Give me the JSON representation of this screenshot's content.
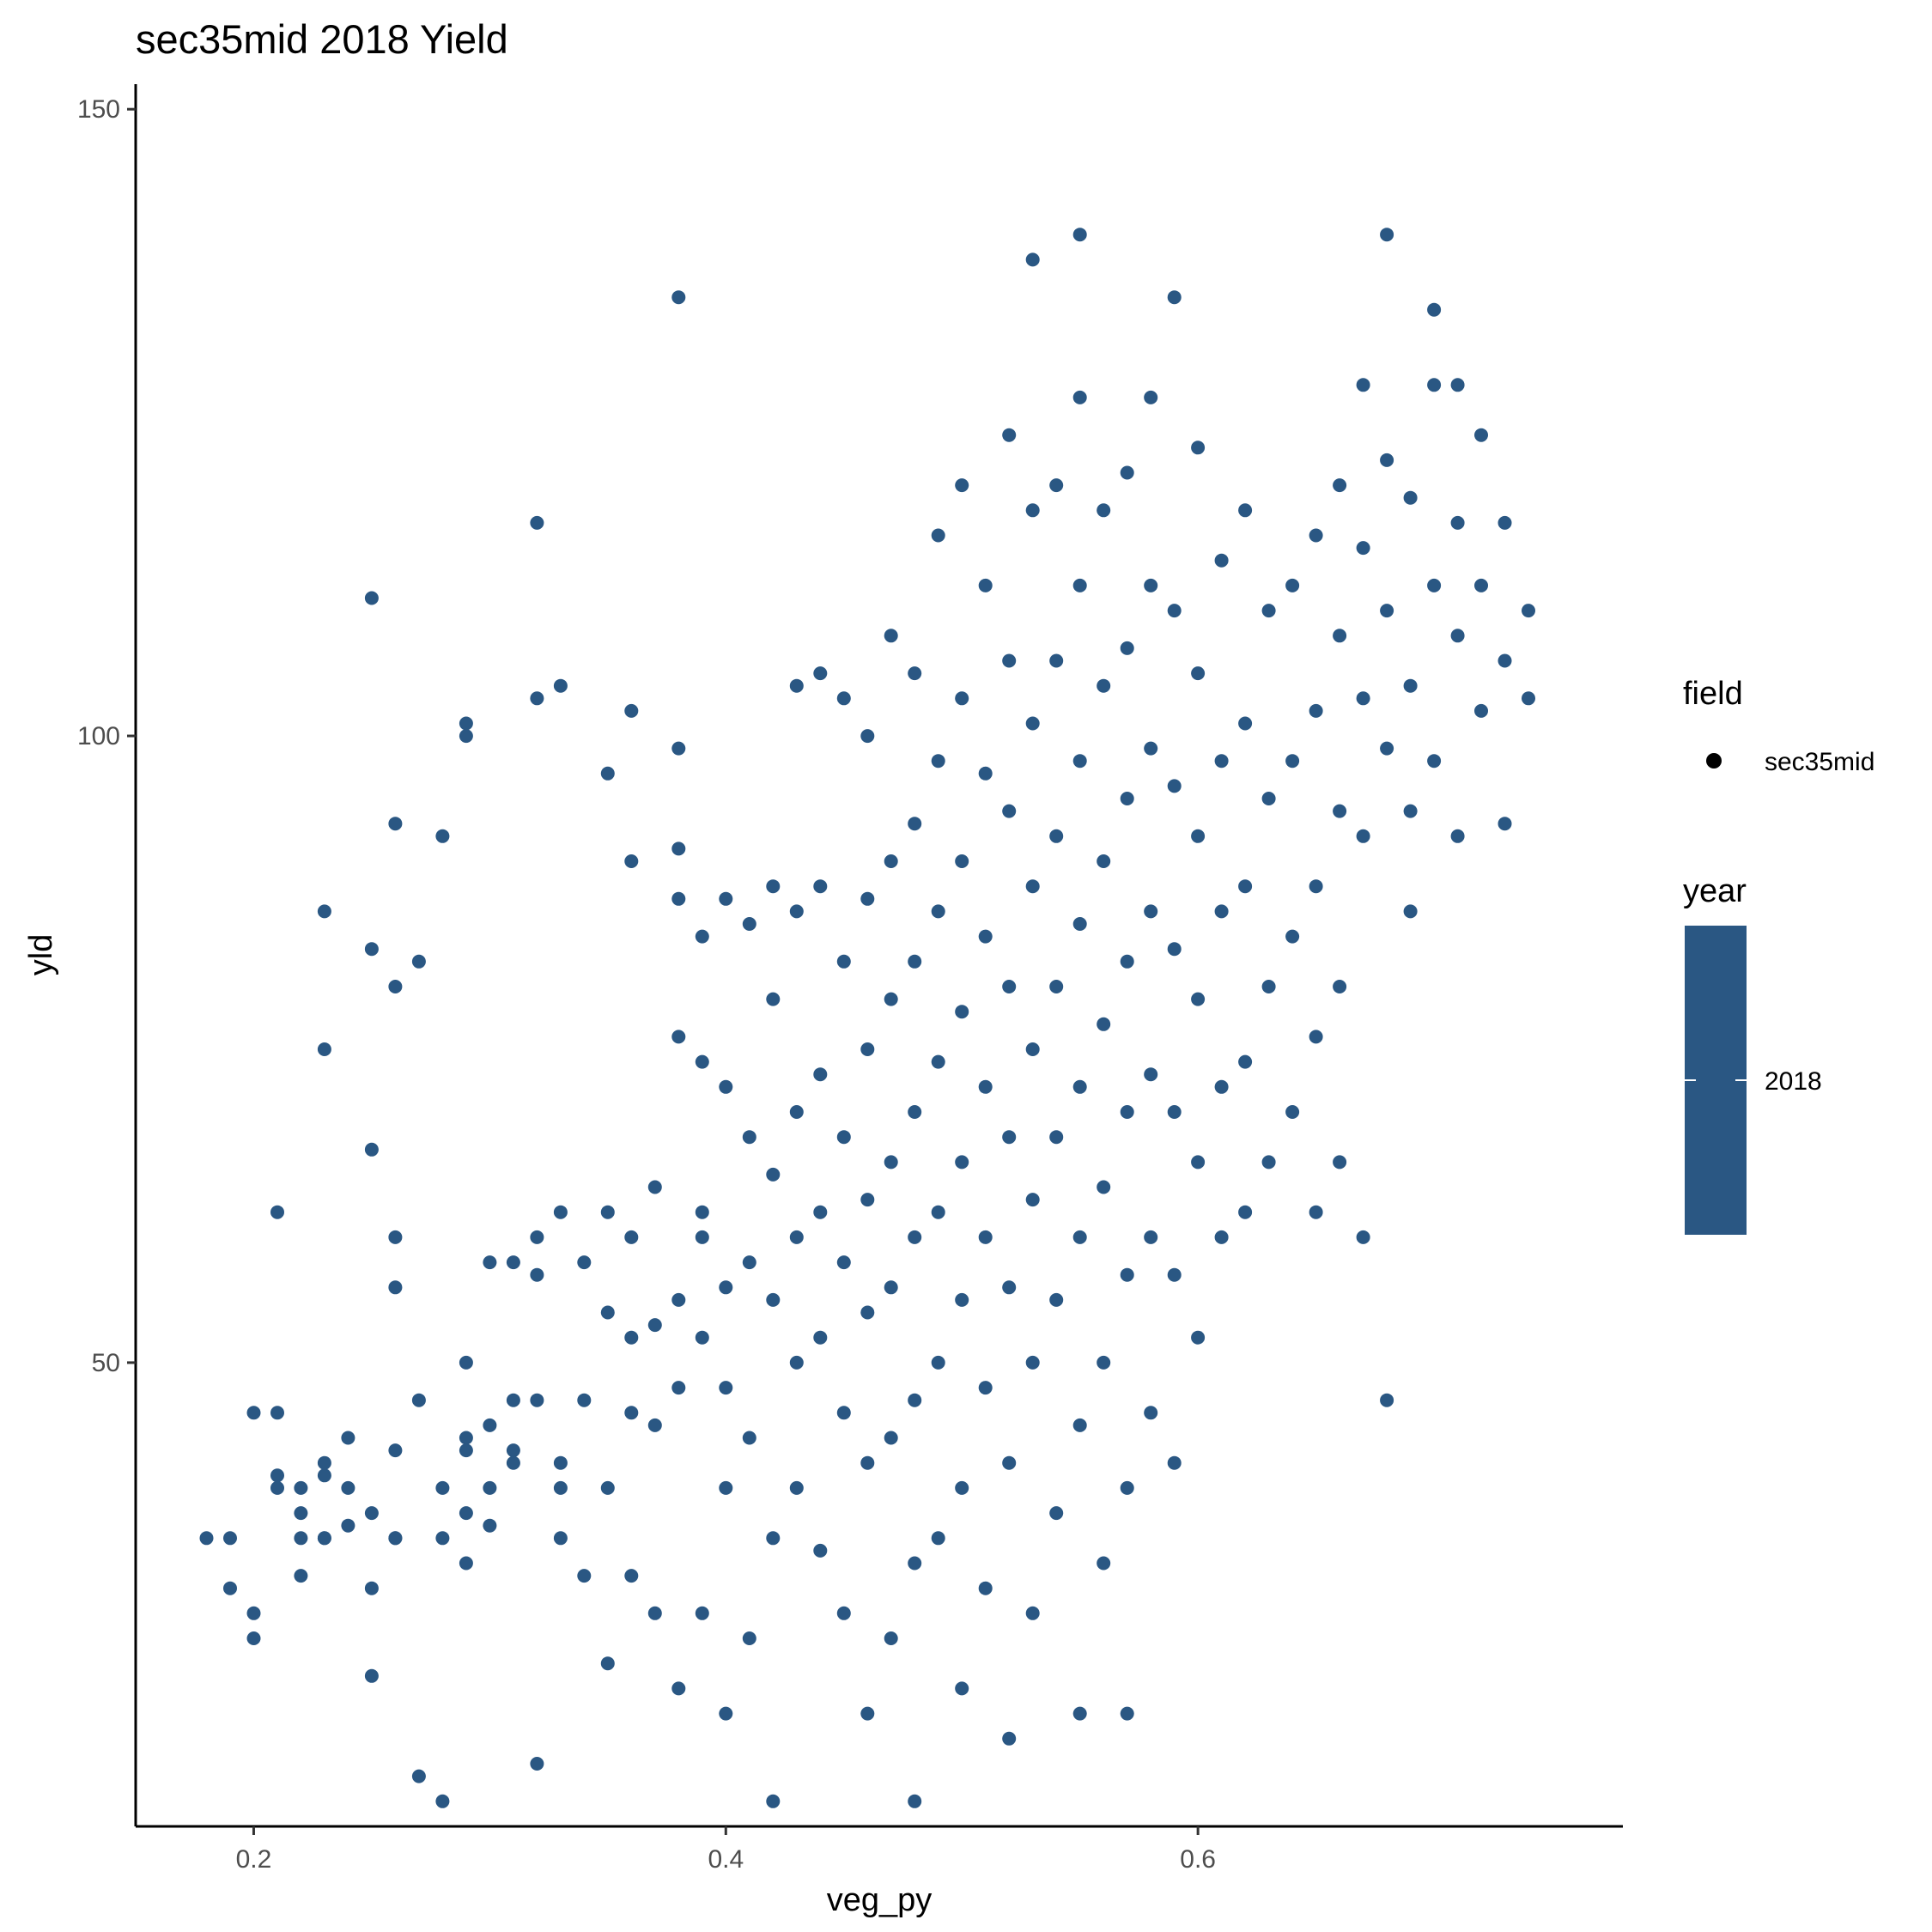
{
  "chart_data": {
    "type": "scatter",
    "title": "sec35mid 2018 Yield",
    "xlabel": "veg_py",
    "ylabel": "yld",
    "xlim": [
      0.15,
      0.78
    ],
    "ylim": [
      13,
      152
    ],
    "x_ticks": [
      0.2,
      0.4,
      0.6
    ],
    "x_tick_labels": [
      "0.2",
      "0.4",
      "0.6"
    ],
    "y_ticks": [
      50,
      100,
      150
    ],
    "y_tick_labels": [
      "50",
      "100",
      "150"
    ],
    "grid": false,
    "legend_position": "right",
    "point_color": "#2a5783",
    "point_count_note": "approximately 7000 points, only a representative subset is listed",
    "legend": {
      "shape": {
        "title": "field",
        "entries": [
          "sec35mid"
        ]
      },
      "color": {
        "title": "year",
        "label": "2018"
      }
    },
    "series": [
      {
        "name": "sec35mid",
        "points": [
          [
            0.18,
            36
          ],
          [
            0.19,
            36
          ],
          [
            0.19,
            32
          ],
          [
            0.2,
            46
          ],
          [
            0.2,
            30
          ],
          [
            0.2,
            28
          ],
          [
            0.21,
            46
          ],
          [
            0.21,
            41
          ],
          [
            0.21,
            40
          ],
          [
            0.21,
            62
          ],
          [
            0.22,
            36
          ],
          [
            0.22,
            33
          ],
          [
            0.22,
            40
          ],
          [
            0.22,
            38
          ],
          [
            0.23,
            36
          ],
          [
            0.23,
            41
          ],
          [
            0.23,
            42
          ],
          [
            0.23,
            86
          ],
          [
            0.23,
            75
          ],
          [
            0.23,
            36
          ],
          [
            0.24,
            37
          ],
          [
            0.24,
            40
          ],
          [
            0.24,
            44
          ],
          [
            0.25,
            111
          ],
          [
            0.25,
            38
          ],
          [
            0.25,
            32
          ],
          [
            0.25,
            25
          ],
          [
            0.25,
            67
          ],
          [
            0.25,
            83
          ],
          [
            0.26,
            80
          ],
          [
            0.26,
            93
          ],
          [
            0.26,
            60
          ],
          [
            0.26,
            56
          ],
          [
            0.26,
            36
          ],
          [
            0.26,
            43
          ],
          [
            0.26,
            36
          ],
          [
            0.27,
            82
          ],
          [
            0.27,
            47
          ],
          [
            0.27,
            17
          ],
          [
            0.28,
            15
          ],
          [
            0.28,
            92
          ],
          [
            0.28,
            36
          ],
          [
            0.28,
            40
          ],
          [
            0.29,
            101
          ],
          [
            0.29,
            100
          ],
          [
            0.29,
            44
          ],
          [
            0.29,
            43
          ],
          [
            0.29,
            38
          ],
          [
            0.29,
            34
          ],
          [
            0.29,
            50
          ],
          [
            0.3,
            37
          ],
          [
            0.3,
            45
          ],
          [
            0.3,
            58
          ],
          [
            0.3,
            40
          ],
          [
            0.31,
            58
          ],
          [
            0.31,
            42
          ],
          [
            0.31,
            47
          ],
          [
            0.31,
            43
          ],
          [
            0.32,
            117
          ],
          [
            0.32,
            103
          ],
          [
            0.32,
            57
          ],
          [
            0.32,
            47
          ],
          [
            0.32,
            60
          ],
          [
            0.32,
            18
          ],
          [
            0.33,
            104
          ],
          [
            0.33,
            62
          ],
          [
            0.33,
            40
          ],
          [
            0.33,
            36
          ],
          [
            0.33,
            42
          ],
          [
            0.34,
            58
          ],
          [
            0.34,
            47
          ],
          [
            0.34,
            33
          ],
          [
            0.35,
            97
          ],
          [
            0.35,
            62
          ],
          [
            0.35,
            54
          ],
          [
            0.35,
            40
          ],
          [
            0.35,
            26
          ],
          [
            0.36,
            102
          ],
          [
            0.36,
            90
          ],
          [
            0.36,
            60
          ],
          [
            0.36,
            52
          ],
          [
            0.36,
            46
          ],
          [
            0.36,
            33
          ],
          [
            0.37,
            64
          ],
          [
            0.37,
            53
          ],
          [
            0.37,
            45
          ],
          [
            0.37,
            30
          ],
          [
            0.38,
            135
          ],
          [
            0.38,
            99
          ],
          [
            0.38,
            91
          ],
          [
            0.38,
            87
          ],
          [
            0.38,
            76
          ],
          [
            0.38,
            55
          ],
          [
            0.38,
            48
          ],
          [
            0.38,
            24
          ],
          [
            0.39,
            84
          ],
          [
            0.39,
            74
          ],
          [
            0.39,
            62
          ],
          [
            0.39,
            52
          ],
          [
            0.39,
            30
          ],
          [
            0.39,
            60
          ],
          [
            0.4,
            87
          ],
          [
            0.4,
            72
          ],
          [
            0.4,
            56
          ],
          [
            0.4,
            48
          ],
          [
            0.4,
            40
          ],
          [
            0.4,
            22
          ],
          [
            0.41,
            85
          ],
          [
            0.41,
            68
          ],
          [
            0.41,
            58
          ],
          [
            0.41,
            44
          ],
          [
            0.41,
            28
          ],
          [
            0.42,
            88
          ],
          [
            0.42,
            79
          ],
          [
            0.42,
            65
          ],
          [
            0.42,
            55
          ],
          [
            0.42,
            36
          ],
          [
            0.42,
            15
          ],
          [
            0.43,
            104
          ],
          [
            0.43,
            86
          ],
          [
            0.43,
            70
          ],
          [
            0.43,
            60
          ],
          [
            0.43,
            50
          ],
          [
            0.43,
            40
          ],
          [
            0.44,
            105
          ],
          [
            0.44,
            88
          ],
          [
            0.44,
            73
          ],
          [
            0.44,
            62
          ],
          [
            0.44,
            52
          ],
          [
            0.44,
            35
          ],
          [
            0.45,
            103
          ],
          [
            0.45,
            82
          ],
          [
            0.45,
            68
          ],
          [
            0.45,
            58
          ],
          [
            0.45,
            46
          ],
          [
            0.45,
            30
          ],
          [
            0.46,
            100
          ],
          [
            0.46,
            87
          ],
          [
            0.46,
            75
          ],
          [
            0.46,
            63
          ],
          [
            0.46,
            54
          ],
          [
            0.46,
            42
          ],
          [
            0.46,
            22
          ],
          [
            0.47,
            108
          ],
          [
            0.47,
            90
          ],
          [
            0.47,
            79
          ],
          [
            0.47,
            66
          ],
          [
            0.47,
            56
          ],
          [
            0.47,
            44
          ],
          [
            0.47,
            28
          ],
          [
            0.48,
            105
          ],
          [
            0.48,
            93
          ],
          [
            0.48,
            82
          ],
          [
            0.48,
            70
          ],
          [
            0.48,
            60
          ],
          [
            0.48,
            47
          ],
          [
            0.48,
            34
          ],
          [
            0.48,
            15
          ],
          [
            0.49,
            116
          ],
          [
            0.49,
            98
          ],
          [
            0.49,
            86
          ],
          [
            0.49,
            74
          ],
          [
            0.49,
            62
          ],
          [
            0.49,
            50
          ],
          [
            0.49,
            36
          ],
          [
            0.5,
            120
          ],
          [
            0.5,
            103
          ],
          [
            0.5,
            90
          ],
          [
            0.5,
            78
          ],
          [
            0.5,
            66
          ],
          [
            0.5,
            55
          ],
          [
            0.5,
            40
          ],
          [
            0.5,
            24
          ],
          [
            0.51,
            112
          ],
          [
            0.51,
            97
          ],
          [
            0.51,
            84
          ],
          [
            0.51,
            72
          ],
          [
            0.51,
            60
          ],
          [
            0.51,
            48
          ],
          [
            0.51,
            32
          ],
          [
            0.52,
            124
          ],
          [
            0.52,
            106
          ],
          [
            0.52,
            94
          ],
          [
            0.52,
            80
          ],
          [
            0.52,
            68
          ],
          [
            0.52,
            56
          ],
          [
            0.52,
            42
          ],
          [
            0.52,
            20
          ],
          [
            0.53,
            138
          ],
          [
            0.53,
            118
          ],
          [
            0.53,
            101
          ],
          [
            0.53,
            88
          ],
          [
            0.53,
            75
          ],
          [
            0.53,
            63
          ],
          [
            0.53,
            50
          ],
          [
            0.53,
            30
          ],
          [
            0.54,
            120
          ],
          [
            0.54,
            106
          ],
          [
            0.54,
            92
          ],
          [
            0.54,
            80
          ],
          [
            0.54,
            68
          ],
          [
            0.54,
            55
          ],
          [
            0.54,
            38
          ],
          [
            0.55,
            140
          ],
          [
            0.55,
            127
          ],
          [
            0.55,
            112
          ],
          [
            0.55,
            98
          ],
          [
            0.55,
            85
          ],
          [
            0.55,
            72
          ],
          [
            0.55,
            60
          ],
          [
            0.55,
            45
          ],
          [
            0.55,
            22
          ],
          [
            0.56,
            118
          ],
          [
            0.56,
            104
          ],
          [
            0.56,
            90
          ],
          [
            0.56,
            77
          ],
          [
            0.56,
            64
          ],
          [
            0.56,
            50
          ],
          [
            0.56,
            34
          ],
          [
            0.57,
            121
          ],
          [
            0.57,
            107
          ],
          [
            0.57,
            95
          ],
          [
            0.57,
            82
          ],
          [
            0.57,
            70
          ],
          [
            0.57,
            57
          ],
          [
            0.57,
            40
          ],
          [
            0.57,
            22
          ],
          [
            0.58,
            127
          ],
          [
            0.58,
            112
          ],
          [
            0.58,
            99
          ],
          [
            0.58,
            86
          ],
          [
            0.58,
            73
          ],
          [
            0.58,
            60
          ],
          [
            0.58,
            46
          ],
          [
            0.59,
            135
          ],
          [
            0.59,
            110
          ],
          [
            0.59,
            96
          ],
          [
            0.59,
            83
          ],
          [
            0.59,
            70
          ],
          [
            0.59,
            57
          ],
          [
            0.59,
            42
          ],
          [
            0.6,
            123
          ],
          [
            0.6,
            105
          ],
          [
            0.6,
            92
          ],
          [
            0.6,
            79
          ],
          [
            0.6,
            66
          ],
          [
            0.6,
            52
          ],
          [
            0.61,
            114
          ],
          [
            0.61,
            98
          ],
          [
            0.61,
            86
          ],
          [
            0.61,
            72
          ],
          [
            0.61,
            60
          ],
          [
            0.62,
            118
          ],
          [
            0.62,
            101
          ],
          [
            0.62,
            88
          ],
          [
            0.62,
            74
          ],
          [
            0.62,
            62
          ],
          [
            0.63,
            110
          ],
          [
            0.63,
            95
          ],
          [
            0.63,
            80
          ],
          [
            0.63,
            66
          ],
          [
            0.64,
            112
          ],
          [
            0.64,
            98
          ],
          [
            0.64,
            84
          ],
          [
            0.64,
            70
          ],
          [
            0.65,
            116
          ],
          [
            0.65,
            102
          ],
          [
            0.65,
            88
          ],
          [
            0.65,
            76
          ],
          [
            0.65,
            62
          ],
          [
            0.66,
            120
          ],
          [
            0.66,
            108
          ],
          [
            0.66,
            94
          ],
          [
            0.66,
            80
          ],
          [
            0.66,
            66
          ],
          [
            0.67,
            128
          ],
          [
            0.67,
            115
          ],
          [
            0.67,
            103
          ],
          [
            0.67,
            92
          ],
          [
            0.67,
            60
          ],
          [
            0.68,
            140
          ],
          [
            0.68,
            122
          ],
          [
            0.68,
            110
          ],
          [
            0.68,
            99
          ],
          [
            0.68,
            47
          ],
          [
            0.69,
            119
          ],
          [
            0.69,
            104
          ],
          [
            0.69,
            94
          ],
          [
            0.69,
            86
          ],
          [
            0.7,
            134
          ],
          [
            0.7,
            128
          ],
          [
            0.7,
            112
          ],
          [
            0.7,
            98
          ],
          [
            0.71,
            128
          ],
          [
            0.71,
            117
          ],
          [
            0.71,
            108
          ],
          [
            0.71,
            92
          ],
          [
            0.72,
            124
          ],
          [
            0.72,
            112
          ],
          [
            0.72,
            102
          ],
          [
            0.73,
            117
          ],
          [
            0.73,
            106
          ],
          [
            0.73,
            93
          ],
          [
            0.74,
            110
          ],
          [
            0.74,
            103
          ]
        ]
      }
    ]
  }
}
